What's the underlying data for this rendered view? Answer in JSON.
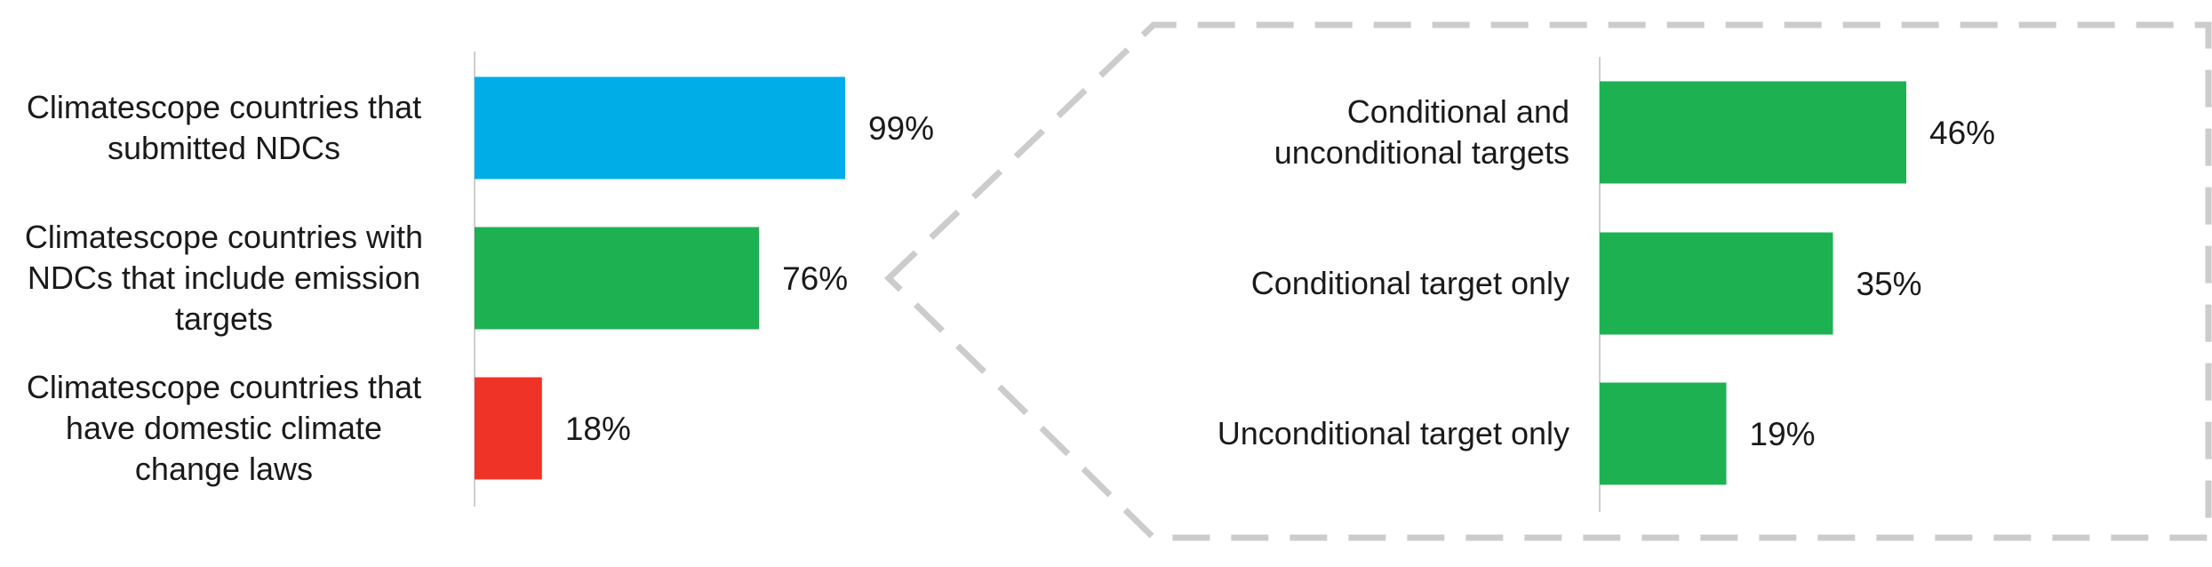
{
  "chart_data": [
    {
      "type": "bar",
      "orientation": "horizontal",
      "title": "",
      "xlabel": "",
      "ylabel": "",
      "xlim": [
        0,
        100
      ],
      "grid": false,
      "categories": [
        "Climatescope countries that submitted NDCs",
        "Climatescope countries with NDCs that include emission targets",
        "Climatescope countries that have domestic climate change laws"
      ],
      "category_lines": [
        [
          "Climatescope countries that",
          "submitted NDCs"
        ],
        [
          "Climatescope countries with",
          "NDCs that include emission",
          "targets"
        ],
        [
          "Climatescope countries that",
          "have domestic climate",
          "change laws"
        ]
      ],
      "values": [
        99,
        76,
        18
      ],
      "value_labels": [
        "99%",
        "76%",
        "18%"
      ],
      "colors": [
        "#00ade6",
        "#1db152",
        "#f03327"
      ]
    },
    {
      "type": "bar",
      "orientation": "horizontal",
      "title": "",
      "xlabel": "",
      "ylabel": "",
      "xlim": [
        0,
        100
      ],
      "grid": false,
      "categories": [
        "Conditional and unconditional targets",
        "Conditional target only",
        "Unconditional target only"
      ],
      "category_lines": [
        [
          "Conditional and",
          "unconditional targets"
        ],
        [
          "Conditional target only"
        ],
        [
          "Unconditional target only"
        ]
      ],
      "values": [
        46,
        35,
        19
      ],
      "value_labels": [
        "46%",
        "35%",
        "19%"
      ],
      "colors": [
        "#1db152",
        "#1db152",
        "#1db152"
      ]
    }
  ],
  "callout": {
    "style": "dashed",
    "color": "#cccccc",
    "links": "76% bar to right panel"
  }
}
